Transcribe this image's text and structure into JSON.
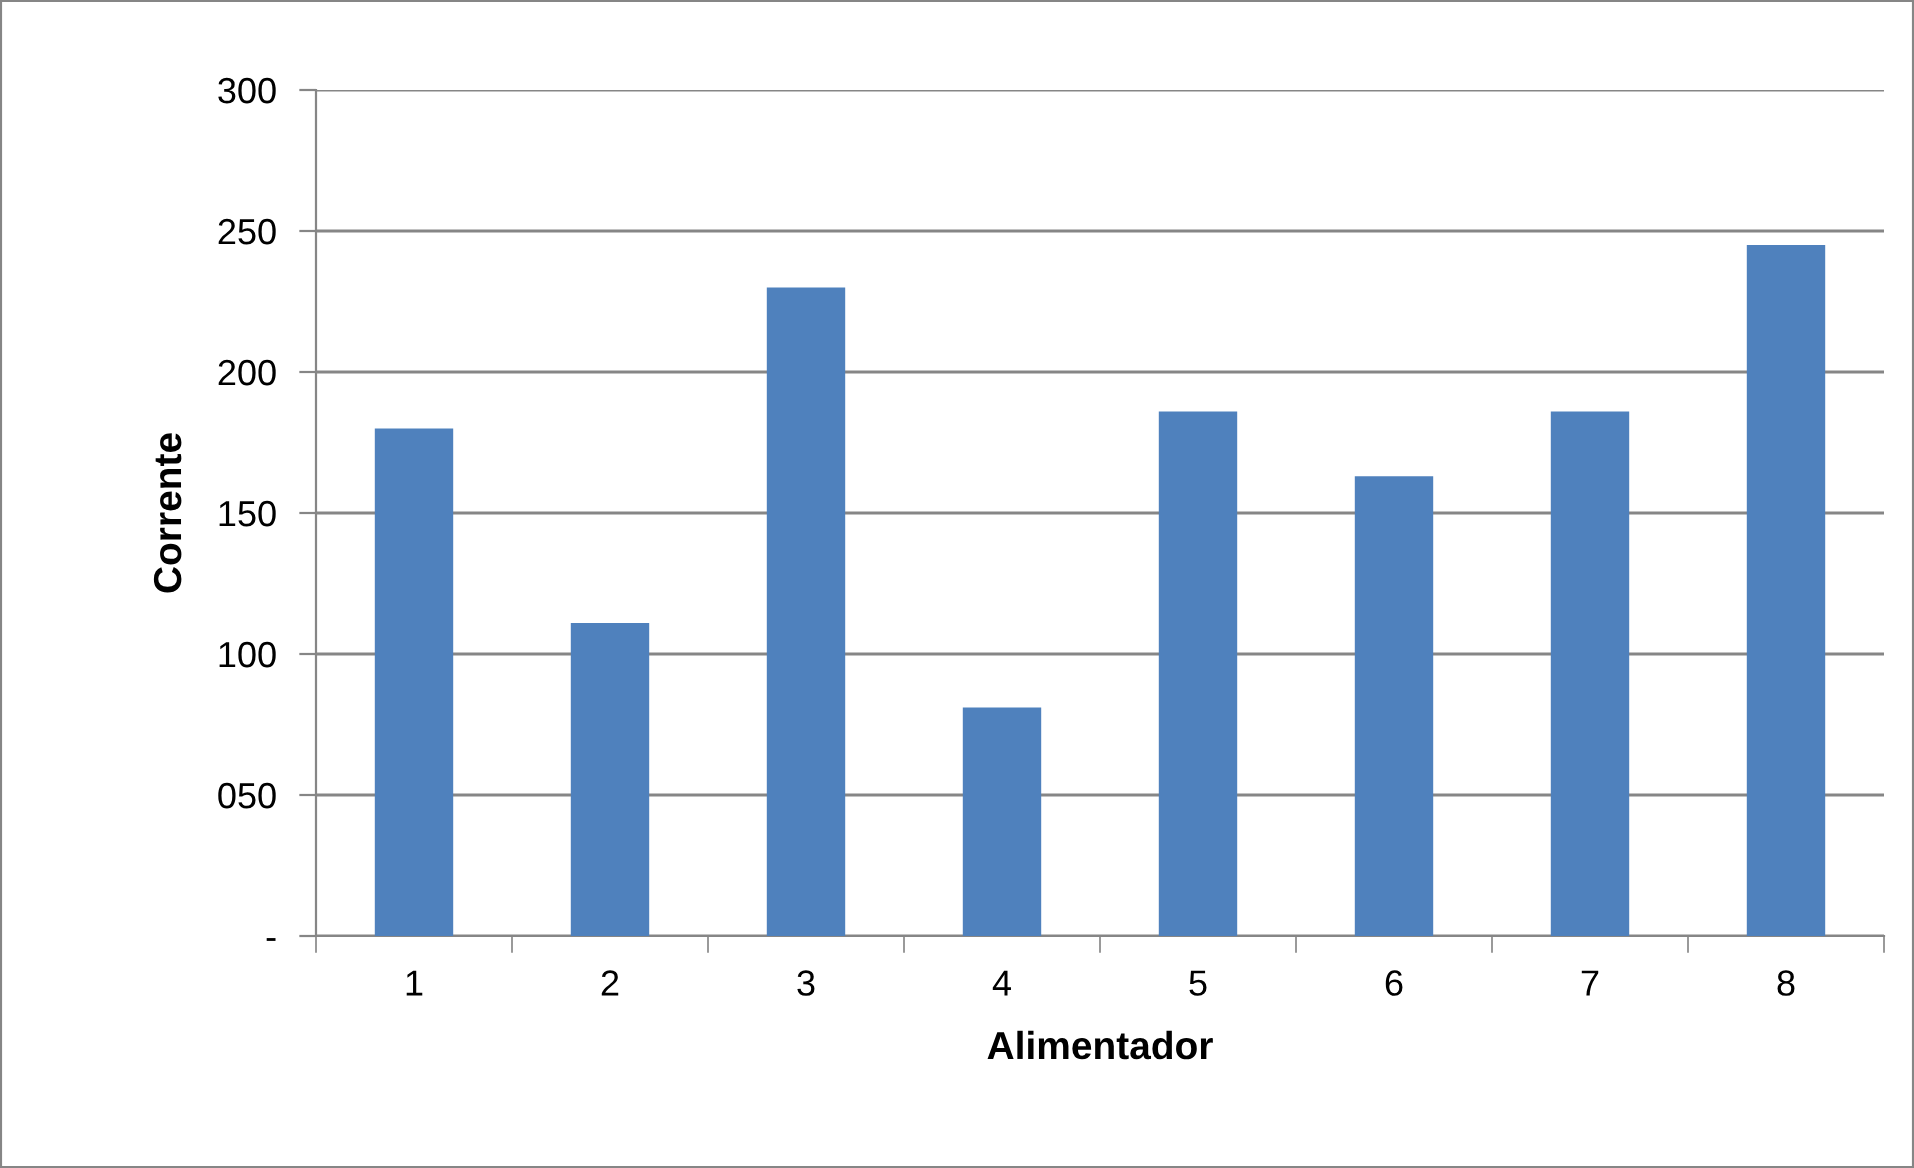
{
  "chart_data": {
    "type": "bar",
    "xlabel": "Alimentador",
    "ylabel": "Corrente",
    "categories": [
      "1",
      "2",
      "3",
      "4",
      "5",
      "6",
      "7",
      "8"
    ],
    "values": [
      180,
      111,
      230,
      81,
      186,
      163,
      186,
      245
    ],
    "color": "#4f81bd",
    "ylim": [
      0,
      300
    ],
    "yticks": [
      {
        "value": 0,
        "label": "-"
      },
      {
        "value": 50,
        "label": "050"
      },
      100,
      150,
      200,
      250,
      300
    ],
    "grid": "y",
    "legend": false
  }
}
